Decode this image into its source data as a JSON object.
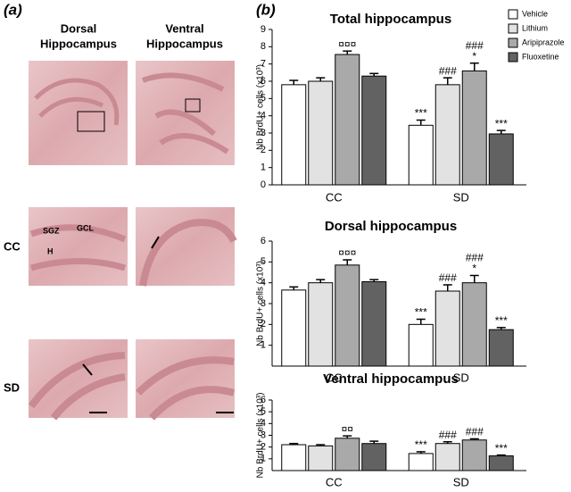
{
  "panel_a": {
    "label": "(a)",
    "columns": [
      [
        "Dorsal",
        "Hippocampus"
      ],
      [
        "Ventral",
        "Hippocampus"
      ]
    ],
    "rows": [
      "CC",
      "SD"
    ],
    "region_labels": [
      "SGZ",
      "GCL",
      "H"
    ]
  },
  "panel_b_label": "(b)",
  "chart_data": [
    {
      "type": "bar",
      "title": "Total hippocampus",
      "y_label": "Nb BrdU+ cells (x10³)",
      "categories": [
        "CC",
        "SD"
      ],
      "ylim": [
        0,
        9
      ],
      "yticks": [
        0,
        1,
        2,
        3,
        4,
        5,
        6,
        7,
        8,
        9
      ],
      "legend": "top-right",
      "series": [
        {
          "name": "Vehicle",
          "color": "#ffffff",
          "values": [
            5.8,
            3.45
          ],
          "errors": [
            0.25,
            0.3
          ],
          "annotations": [
            null,
            [
              "***"
            ]
          ]
        },
        {
          "name": "Lithium",
          "color": "#e2e2e2",
          "values": [
            6.0,
            5.8
          ],
          "errors": [
            0.2,
            0.4
          ],
          "annotations": [
            null,
            [
              "###"
            ]
          ]
        },
        {
          "name": "Aripiprazole",
          "color": "#a9a9a9",
          "values": [
            7.55,
            6.6
          ],
          "errors": [
            0.2,
            0.45
          ],
          "annotations": [
            [
              "¤¤¤"
            ],
            [
              "###",
              "*"
            ]
          ]
        },
        {
          "name": "Fluoxetine",
          "color": "#626262",
          "values": [
            6.3,
            2.95
          ],
          "errors": [
            0.15,
            0.2
          ],
          "annotations": [
            null,
            [
              "***"
            ]
          ]
        }
      ]
    },
    {
      "type": "bar",
      "title": "Dorsal hippocampus",
      "y_label": "Nb BrdU+ cells (x10³)",
      "categories": [
        "CC",
        "SD"
      ],
      "ylim": [
        0,
        6
      ],
      "yticks": [
        1,
        2,
        3,
        4,
        5,
        6
      ],
      "series": [
        {
          "color": "#ffffff",
          "values": [
            3.65,
            2.0
          ],
          "errors": [
            0.15,
            0.25
          ],
          "annotations": [
            null,
            [
              "***"
            ]
          ]
        },
        {
          "color": "#e2e2e2",
          "values": [
            4.0,
            3.6
          ],
          "errors": [
            0.15,
            0.3
          ],
          "annotations": [
            null,
            [
              "###"
            ]
          ]
        },
        {
          "color": "#a9a9a9",
          "values": [
            4.85,
            4.0
          ],
          "errors": [
            0.25,
            0.35
          ],
          "annotations": [
            [
              "¤¤¤"
            ],
            [
              "###",
              "*"
            ]
          ]
        },
        {
          "color": "#626262",
          "values": [
            4.05,
            1.75
          ],
          "errors": [
            0.1,
            0.1
          ],
          "annotations": [
            null,
            [
              "***"
            ]
          ]
        }
      ]
    },
    {
      "type": "bar",
      "title": "Ventral hippocampus",
      "y_label": "Nb BrdU+ cells (x10³)",
      "categories": [
        "CC",
        "SD"
      ],
      "ylim": [
        0,
        6
      ],
      "yticks": [
        1,
        2,
        3,
        4,
        5,
        6
      ],
      "series": [
        {
          "color": "#ffffff",
          "values": [
            2.2,
            1.45
          ],
          "errors": [
            0.1,
            0.15
          ],
          "annotations": [
            null,
            [
              "***"
            ]
          ]
        },
        {
          "color": "#e2e2e2",
          "values": [
            2.1,
            2.3
          ],
          "errors": [
            0.1,
            0.15
          ],
          "annotations": [
            null,
            [
              "###"
            ]
          ]
        },
        {
          "color": "#a9a9a9",
          "values": [
            2.75,
            2.6
          ],
          "errors": [
            0.2,
            0.1
          ],
          "annotations": [
            [
              "¤¤"
            ],
            [
              "###"
            ]
          ]
        },
        {
          "color": "#626262",
          "values": [
            2.3,
            1.25
          ],
          "errors": [
            0.2,
            0.07
          ],
          "annotations": [
            null,
            [
              "***"
            ]
          ]
        }
      ]
    }
  ]
}
